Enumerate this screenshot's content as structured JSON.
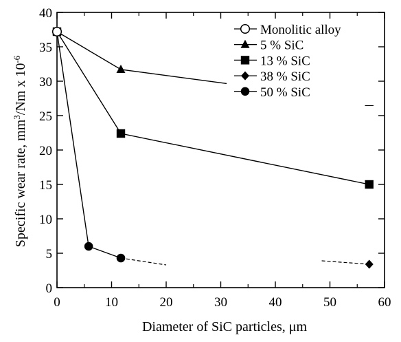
{
  "chart_data": {
    "type": "line",
    "title": "",
    "xlabel": "Diameter of SiC particles, μm",
    "ylabel_main": "Specific wear rate, mm",
    "ylabel_sup1": "3",
    "ylabel_mid": "/Nm x 10",
    "ylabel_sup2": "-6",
    "xlim": [
      0,
      60
    ],
    "ylim": [
      0,
      40
    ],
    "xticks": [
      "0",
      "10",
      "20",
      "30",
      "40",
      "50",
      "60"
    ],
    "yticks": [
      "0",
      "5",
      "10",
      "15",
      "20",
      "25",
      "30",
      "35",
      "40"
    ],
    "grid": false,
    "legend_position": "top-right",
    "series": [
      {
        "name": "Monolitic alloy",
        "marker": "circle-open",
        "x": [
          0
        ],
        "y": [
          37.2
        ]
      },
      {
        "name": "5 % SiC",
        "marker": "triangle",
        "x": [
          0,
          11.7,
          57.2
        ],
        "y": [
          37.2,
          31.7,
          26.9
        ]
      },
      {
        "name": "13 % SiC",
        "marker": "square",
        "x": [
          0,
          11.7,
          57.2
        ],
        "y": [
          37.2,
          22.4,
          15.0
        ]
      },
      {
        "name": "38 % SiC",
        "marker": "diamond",
        "x": [
          57.2
        ],
        "y": [
          3.4
        ],
        "dashed_segments": [
          [
            [
              48.5,
              3.9
            ],
            [
              57.2,
              3.4
            ]
          ]
        ]
      },
      {
        "name": "50 % SiC",
        "marker": "circle-filled",
        "x": [
          0,
          5.8,
          11.7
        ],
        "y": [
          37.2,
          6.0,
          4.3
        ],
        "dashed_segments": [
          [
            [
              11.7,
              4.3
            ],
            [
              20,
              3.3
            ]
          ]
        ]
      }
    ]
  }
}
